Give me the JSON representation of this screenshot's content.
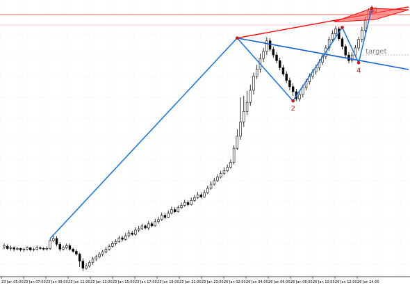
{
  "chart_data": {
    "type": "candlestick",
    "title": "",
    "xlabel": "",
    "ylabel": "",
    "grid": true,
    "colors": {
      "bull": "#ffffff",
      "bear": "#000000",
      "wick": "#000000",
      "wave": "#1e78e6",
      "channel": "#ff0000",
      "level": "#e03030",
      "wave_down": "#1560d0",
      "target": "#808080",
      "point_label": "#d01010"
    },
    "x_tick_labels": [
      "23 Jan 05:00",
      "23 Jan 07:00",
      "23 Jan 09:00",
      "23 Jan 11:00",
      "23 Jan 13:00",
      "23 Jan 15:00",
      "23 Jan 17:00",
      "23 Jan 19:00",
      "23 Jan 21:00",
      "23 Jan 23:00",
      "26 Jan 02:00",
      "26 Jan 04:00",
      "26 Jan 06:00",
      "26 Jan 08:00",
      "26 Jan 10:00",
      "26 Jan 12:00",
      "26 Jan 14:00"
    ],
    "candles": [
      [
        342,
        340,
        337,
        345
      ],
      [
        341,
        344,
        338,
        346
      ],
      [
        344,
        343,
        340,
        347
      ],
      [
        343,
        345,
        341,
        348
      ],
      [
        345,
        344,
        342,
        347
      ],
      [
        344,
        346,
        343,
        348
      ],
      [
        346,
        345,
        343,
        349
      ],
      [
        345,
        343,
        341,
        347
      ],
      [
        343,
        346,
        342,
        348
      ],
      [
        346,
        345,
        343,
        348
      ],
      [
        345,
        343,
        340,
        347
      ],
      [
        343,
        344,
        341,
        346
      ],
      [
        344,
        345,
        342,
        347
      ],
      [
        345,
        344,
        341,
        347
      ],
      [
        344,
        333,
        330,
        346
      ],
      [
        333,
        330,
        326,
        335
      ],
      [
        330,
        338,
        327,
        341
      ],
      [
        338,
        345,
        335,
        348
      ],
      [
        345,
        343,
        340,
        347
      ],
      [
        343,
        340,
        337,
        345
      ],
      [
        340,
        345,
        337,
        347
      ],
      [
        345,
        348,
        343,
        350
      ],
      [
        348,
        352,
        345,
        354
      ],
      [
        352,
        362,
        350,
        370
      ],
      [
        362,
        372,
        358,
        376
      ],
      [
        372,
        369,
        365,
        374
      ],
      [
        369,
        364,
        361,
        371
      ],
      [
        364,
        359,
        356,
        367
      ],
      [
        359,
        356,
        353,
        362
      ],
      [
        356,
        352,
        349,
        358
      ],
      [
        352,
        349,
        346,
        355
      ],
      [
        349,
        345,
        342,
        351
      ],
      [
        345,
        341,
        338,
        347
      ],
      [
        341,
        337,
        334,
        343
      ],
      [
        337,
        334,
        331,
        340
      ],
      [
        334,
        329,
        326,
        336
      ],
      [
        329,
        331,
        326,
        334
      ],
      [
        331,
        326,
        322,
        333
      ],
      [
        326,
        322,
        318,
        329
      ],
      [
        322,
        324,
        319,
        326
      ],
      [
        324,
        318,
        314,
        326
      ],
      [
        318,
        316,
        312,
        321
      ],
      [
        316,
        312,
        309,
        318
      ],
      [
        312,
        315,
        310,
        317
      ],
      [
        315,
        309,
        305,
        318
      ],
      [
        309,
        312,
        306,
        314
      ],
      [
        312,
        306,
        302,
        313
      ],
      [
        306,
        303,
        299,
        309
      ],
      [
        303,
        297,
        293,
        305
      ],
      [
        297,
        300,
        294,
        302
      ],
      [
        300,
        294,
        290,
        301
      ],
      [
        294,
        289,
        285,
        296
      ],
      [
        289,
        292,
        286,
        294
      ],
      [
        292,
        286,
        283,
        293
      ],
      [
        286,
        283,
        279,
        288
      ],
      [
        283,
        279,
        275,
        285
      ],
      [
        279,
        282,
        276,
        284
      ],
      [
        282,
        276,
        272,
        283
      ],
      [
        276,
        272,
        268,
        278
      ],
      [
        272,
        268,
        264,
        274
      ],
      [
        268,
        271,
        265,
        273
      ],
      [
        271,
        265,
        261,
        272
      ],
      [
        265,
        259,
        255,
        267
      ],
      [
        259,
        253,
        249,
        261
      ],
      [
        253,
        248,
        244,
        255
      ],
      [
        248,
        243,
        239,
        250
      ],
      [
        243,
        238,
        234,
        245
      ],
      [
        238,
        234,
        229,
        240
      ],
      [
        234,
        229,
        225,
        236
      ],
      [
        229,
        222,
        218,
        231
      ],
      [
        222,
        202,
        198,
        225
      ],
      [
        202,
        185,
        175,
        205
      ],
      [
        185,
        165,
        130,
        190
      ],
      [
        165,
        150,
        128,
        172
      ],
      [
        150,
        137,
        121,
        155
      ],
      [
        137,
        120,
        112,
        142
      ],
      [
        120,
        100,
        95,
        126
      ],
      [
        100,
        90,
        84,
        104
      ],
      [
        90,
        75,
        68,
        95
      ],
      [
        75,
        65,
        60,
        80
      ],
      [
        65,
        50,
        45,
        70
      ],
      [
        50,
        62,
        46,
        65
      ],
      [
        62,
        70,
        58,
        74
      ],
      [
        70,
        78,
        66,
        82
      ],
      [
        78,
        88,
        74,
        92
      ],
      [
        88,
        97,
        84,
        100
      ],
      [
        97,
        106,
        93,
        110
      ],
      [
        106,
        115,
        102,
        120
      ],
      [
        115,
        122,
        110,
        128
      ],
      [
        122,
        132,
        118,
        135
      ],
      [
        132,
        126,
        121,
        136
      ],
      [
        126,
        116,
        112,
        130
      ],
      [
        116,
        108,
        104,
        120
      ],
      [
        108,
        100,
        96,
        112
      ],
      [
        100,
        94,
        90,
        104
      ],
      [
        94,
        88,
        84,
        98
      ],
      [
        88,
        80,
        76,
        92
      ],
      [
        80,
        72,
        68,
        84
      ],
      [
        72,
        60,
        56,
        76
      ],
      [
        60,
        48,
        44,
        64
      ],
      [
        48,
        40,
        35,
        52
      ],
      [
        40,
        33,
        29,
        45
      ],
      [
        33,
        47,
        30,
        50
      ],
      [
        47,
        58,
        44,
        62
      ],
      [
        58,
        70,
        55,
        74
      ],
      [
        70,
        78,
        66,
        82
      ],
      [
        78,
        70,
        66,
        81
      ],
      [
        70,
        60,
        56,
        73
      ],
      [
        60,
        48,
        44,
        64
      ],
      [
        48,
        35,
        30,
        52
      ],
      [
        35,
        20,
        16,
        38
      ],
      [
        20,
        8,
        4,
        24
      ],
      [
        8,
        3,
        0,
        12
      ]
    ],
    "wave_points": [
      {
        "candle": 14,
        "price": 330
      },
      {
        "candle": 71,
        "price": 46
      },
      {
        "candle": 88,
        "price": 135,
        "label": "2"
      },
      {
        "candle": 103,
        "price": 31
      },
      {
        "candle": 108,
        "price": 81,
        "label": "4"
      },
      {
        "candle": 112,
        "price": 4,
        "label": "5"
      }
    ],
    "annotations": {
      "channel_label": "target",
      "arrow_glyph": "⇩"
    }
  }
}
